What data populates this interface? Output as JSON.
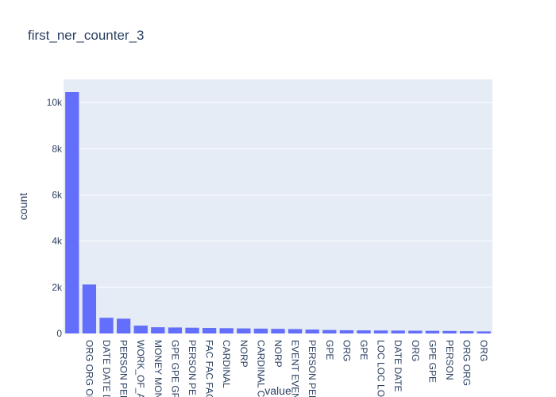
{
  "chart_data": {
    "type": "bar",
    "title": "first_ner_counter_3",
    "xlabel": "value",
    "ylabel": "count",
    "ylim": [
      0,
      11000
    ],
    "yticks": [
      0,
      2000,
      4000,
      6000,
      8000,
      10000
    ],
    "ytick_labels": [
      "0",
      "2k",
      "4k",
      "6k",
      "8k",
      "10k"
    ],
    "grid": true,
    "colors": {
      "bar": "#636efa",
      "plot_bg": "#e5ecf6",
      "grid": "#ffffff",
      "text": "#2a3f5f"
    },
    "categories": [
      "",
      "ORG ORG OI",
      "DATE DATE D",
      "PERSON PER",
      "WORK_OF_A",
      "MONEY MON",
      "GPE GPE GP",
      "PERSON PE",
      "FAC FAC FAC",
      "CARDINAL",
      "NORP",
      "CARDINAL C",
      "NORP",
      "EVENT EVEN",
      "PERSON PER",
      "GPE",
      "ORG",
      "GPE",
      "LOC LOC LO",
      "DATE DATE",
      "ORG",
      "GPE  GPE",
      "PERSON",
      "ORG ORG",
      "ORG"
    ],
    "values": [
      10450,
      2120,
      680,
      640,
      340,
      270,
      260,
      250,
      240,
      230,
      220,
      210,
      200,
      190,
      170,
      150,
      140,
      135,
      130,
      125,
      120,
      115,
      110,
      100,
      90
    ]
  }
}
